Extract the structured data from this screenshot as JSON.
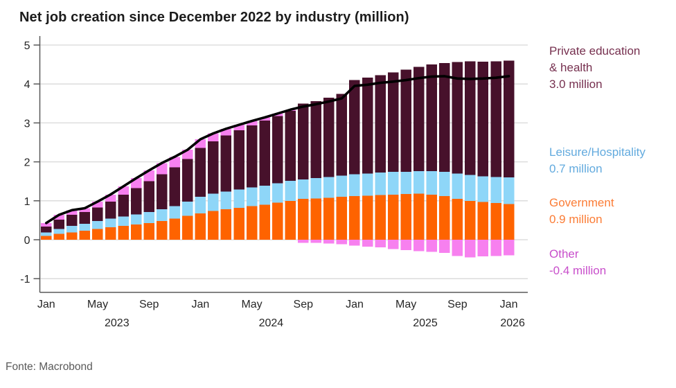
{
  "title": "Net job creation since December 2022 by industry (million)",
  "source": "Fonte: Macrobond",
  "colors": {
    "title": "#1c1c1c",
    "grid": "#d8d8d8",
    "axis": "#595959",
    "tick_text": "#262626",
    "total_line": "#000000",
    "source_text": "#595959"
  },
  "legend": [
    {
      "line1": "Private education",
      "line2": "& health",
      "value": "3.0 million",
      "color": "#76304f"
    },
    {
      "line1": "Leisure/Hospitality",
      "line2": "",
      "value": "0.7 million",
      "color": "#62aade"
    },
    {
      "line1": "Government",
      "line2": "",
      "value": "0.9 million",
      "color": "#fb7c35"
    },
    {
      "line1": "Other",
      "line2": "",
      "value": "-0.4 million",
      "color": "#c84ecb"
    }
  ],
  "chart_data": {
    "type": "bar",
    "subtype": "stacked-bar-with-total-line",
    "title": "Net job creation since December 2022 by industry (million)",
    "xlabel": "",
    "ylabel": "",
    "ylim": [
      -1.35,
      5.15
    ],
    "y_ticks": [
      -1,
      0,
      1,
      2,
      3,
      4,
      5
    ],
    "grid": true,
    "legend_position": "right",
    "months": [
      "Jan 2023",
      "Feb 2023",
      "Mar 2023",
      "Apr 2023",
      "May 2023",
      "Jun 2023",
      "Jul 2023",
      "Aug 2023",
      "Sep 2023",
      "Oct 2023",
      "Nov 2023",
      "Dec 2023",
      "Jan 2024",
      "Feb 2024",
      "Mar 2024",
      "Apr 2024",
      "May 2024",
      "Jun 2024",
      "Jul 2024",
      "Aug 2024",
      "Sep 2024",
      "Oct 2024",
      "Nov 2024",
      "Dec 2024",
      "Jan 2025",
      "Feb 2025",
      "Mar 2025",
      "Apr 2025",
      "May 2025",
      "Jun 2025",
      "Jul 2025",
      "Aug 2025",
      "Sep 2025",
      "Oct 2025",
      "Nov 2025",
      "Dec 2025",
      "Jan 2026"
    ],
    "series": [
      {
        "name": "Government",
        "color": "#fe6300",
        "values": [
          0.1,
          0.15,
          0.19,
          0.23,
          0.28,
          0.32,
          0.36,
          0.39,
          0.43,
          0.48,
          0.54,
          0.61,
          0.68,
          0.74,
          0.78,
          0.82,
          0.86,
          0.9,
          0.95,
          1.0,
          1.05,
          1.06,
          1.08,
          1.1,
          1.12,
          1.13,
          1.15,
          1.16,
          1.17,
          1.18,
          1.16,
          1.12,
          1.05,
          1.0,
          0.97,
          0.94,
          0.92
        ]
      },
      {
        "name": "Leisure/Hospitality",
        "color": "#8ed6f8",
        "values": [
          0.09,
          0.13,
          0.17,
          0.18,
          0.2,
          0.22,
          0.24,
          0.26,
          0.28,
          0.3,
          0.32,
          0.37,
          0.42,
          0.44,
          0.46,
          0.47,
          0.48,
          0.49,
          0.5,
          0.51,
          0.5,
          0.52,
          0.53,
          0.55,
          0.56,
          0.57,
          0.58,
          0.58,
          0.57,
          0.58,
          0.6,
          0.62,
          0.65,
          0.66,
          0.66,
          0.67,
          0.68
        ]
      },
      {
        "name": "Private education & health",
        "color": "#47112b",
        "values": [
          0.15,
          0.24,
          0.28,
          0.3,
          0.35,
          0.44,
          0.56,
          0.68,
          0.79,
          0.9,
          1.0,
          1.09,
          1.26,
          1.35,
          1.44,
          1.52,
          1.6,
          1.67,
          1.73,
          1.8,
          1.95,
          1.98,
          2.04,
          2.1,
          2.42,
          2.46,
          2.5,
          2.56,
          2.63,
          2.68,
          2.74,
          2.8,
          2.86,
          2.92,
          2.94,
          2.97,
          3.0
        ]
      },
      {
        "name": "Other",
        "color": "#f780ef",
        "values": [
          0.09,
          0.12,
          0.12,
          0.1,
          0.15,
          0.18,
          0.21,
          0.25,
          0.28,
          0.29,
          0.27,
          0.24,
          0.22,
          0.2,
          0.17,
          0.14,
          0.11,
          0.08,
          0.06,
          0.03,
          -0.08,
          -0.08,
          -0.1,
          -0.12,
          -0.15,
          -0.18,
          -0.2,
          -0.24,
          -0.27,
          -0.29,
          -0.31,
          -0.34,
          -0.42,
          -0.45,
          -0.43,
          -0.42,
          -0.4
        ]
      }
    ],
    "line": {
      "name": "Total net job creation",
      "color": "#000000",
      "values": [
        0.43,
        0.64,
        0.76,
        0.81,
        0.98,
        1.16,
        1.37,
        1.58,
        1.78,
        1.97,
        2.13,
        2.31,
        2.58,
        2.73,
        2.85,
        2.95,
        3.05,
        3.14,
        3.24,
        3.34,
        3.42,
        3.48,
        3.55,
        3.63,
        3.95,
        3.98,
        4.03,
        4.06,
        4.1,
        4.15,
        4.19,
        4.2,
        4.14,
        4.13,
        4.14,
        4.16,
        4.2
      ]
    },
    "x_ticks": [
      {
        "label": "Jan",
        "i": 0
      },
      {
        "label": "May",
        "i": 4
      },
      {
        "label": "Sep",
        "i": 8
      },
      {
        "label": "Jan",
        "i": 12
      },
      {
        "label": "May",
        "i": 16
      },
      {
        "label": "Sep",
        "i": 20
      },
      {
        "label": "Jan",
        "i": 24
      },
      {
        "label": "May",
        "i": 28
      },
      {
        "label": "Sep",
        "i": 32
      },
      {
        "label": "Jan",
        "i": 36
      }
    ],
    "year_labels": [
      {
        "label": "2023",
        "i": 5.5
      },
      {
        "label": "2024",
        "i": 17.5
      },
      {
        "label": "2025",
        "i": 29.5
      },
      {
        "label": "2026",
        "i": 36.3
      }
    ]
  }
}
